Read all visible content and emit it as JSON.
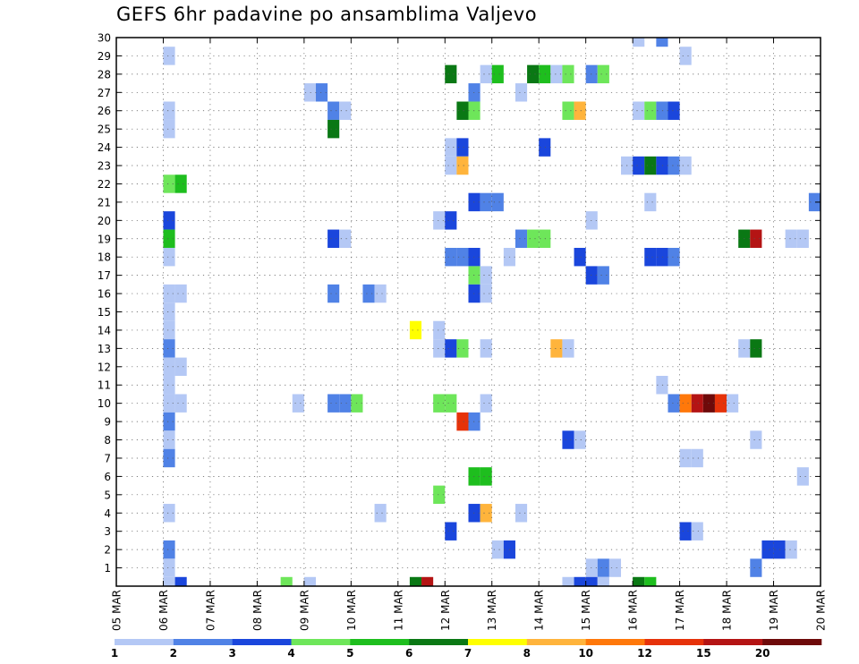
{
  "title": "GEFS 6hr padavine po ansamblima Valjevo",
  "chart_data": {
    "type": "heatmap",
    "title": "GEFS 6hr padavine po ansamblima Valjevo",
    "x_ticks": [
      "05 MAR",
      "06 MAR",
      "07 MAR",
      "08 MAR",
      "09 MAR",
      "10 MAR",
      "11 MAR",
      "12 MAR",
      "13 MAR",
      "14 MAR",
      "15 MAR",
      "16 MAR",
      "17 MAR",
      "18 MAR",
      "19 MAR",
      "20 MAR"
    ],
    "y_ticks": [
      "1",
      "2",
      "3",
      "4",
      "5",
      "6",
      "7",
      "8",
      "9",
      "10",
      "11",
      "12",
      "13",
      "14",
      "15",
      "16",
      "17",
      "18",
      "19",
      "20",
      "21",
      "22",
      "23",
      "24",
      "25",
      "26",
      "27",
      "28",
      "29",
      "30"
    ],
    "xlim": [
      0,
      60
    ],
    "ylim": [
      0,
      30
    ],
    "grid": true,
    "colorbar": {
      "labels": [
        "1",
        "2",
        "3",
        "4",
        "5",
        "6",
        "7",
        "8",
        "10",
        "12",
        "15",
        "20"
      ],
      "colors": [
        "#b4c8f5",
        "#5082e6",
        "#1a46dc",
        "#6ee65a",
        "#1ebe1e",
        "#0a7814",
        "#ffff00",
        "#ffb43c",
        "#ff780a",
        "#e6320a",
        "#b41414",
        "#6e0a0a"
      ]
    },
    "cells": [
      [
        4,
        29,
        0
      ],
      [
        4,
        26,
        0
      ],
      [
        4,
        25,
        0
      ],
      [
        4,
        22,
        3
      ],
      [
        5,
        22,
        4
      ],
      [
        4,
        20,
        2
      ],
      [
        4,
        19,
        4
      ],
      [
        4,
        18,
        0
      ],
      [
        4,
        16,
        0
      ],
      [
        5,
        16,
        0
      ],
      [
        4,
        15,
        0
      ],
      [
        4,
        14,
        0
      ],
      [
        4,
        13,
        1
      ],
      [
        4,
        12,
        0
      ],
      [
        5,
        12,
        0
      ],
      [
        4,
        11,
        0
      ],
      [
        4,
        10,
        0
      ],
      [
        5,
        10,
        0
      ],
      [
        4,
        9,
        1
      ],
      [
        4,
        8,
        0
      ],
      [
        4,
        7,
        1
      ],
      [
        4,
        4,
        0
      ],
      [
        4,
        2,
        1
      ],
      [
        4,
        1,
        0
      ],
      [
        4,
        0,
        0
      ],
      [
        5,
        0,
        2
      ],
      [
        16,
        27,
        0
      ],
      [
        17,
        27,
        1
      ],
      [
        18,
        26,
        1
      ],
      [
        19,
        26,
        0
      ],
      [
        18,
        25,
        5
      ],
      [
        18,
        19,
        2
      ],
      [
        19,
        19,
        0
      ],
      [
        18,
        16,
        1
      ],
      [
        21,
        16,
        1
      ],
      [
        22,
        16,
        0
      ],
      [
        18,
        10,
        1
      ],
      [
        19,
        10,
        1
      ],
      [
        20,
        10,
        3
      ],
      [
        15,
        10,
        0
      ],
      [
        22,
        4,
        0
      ],
      [
        14,
        0,
        3
      ],
      [
        16,
        0,
        0
      ],
      [
        25,
        14,
        6
      ],
      [
        25,
        0,
        5
      ],
      [
        26,
        0,
        10
      ],
      [
        28,
        28,
        5
      ],
      [
        31,
        28,
        0
      ],
      [
        32,
        28,
        4
      ],
      [
        30,
        27,
        1
      ],
      [
        29,
        26,
        5
      ],
      [
        30,
        26,
        3
      ],
      [
        28,
        24,
        0
      ],
      [
        29,
        24,
        2
      ],
      [
        28,
        23,
        0
      ],
      [
        29,
        23,
        7
      ],
      [
        30,
        21,
        2
      ],
      [
        31,
        21,
        1
      ],
      [
        32,
        21,
        1
      ],
      [
        27,
        20,
        0
      ],
      [
        28,
        20,
        2
      ],
      [
        28,
        18,
        1
      ],
      [
        29,
        18,
        1
      ],
      [
        30,
        18,
        2
      ],
      [
        30,
        17,
        3
      ],
      [
        31,
        17,
        0
      ],
      [
        30,
        16,
        2
      ],
      [
        31,
        16,
        0
      ],
      [
        27,
        14,
        0
      ],
      [
        27,
        13,
        0
      ],
      [
        28,
        13,
        2
      ],
      [
        29,
        13,
        3
      ],
      [
        31,
        13,
        0
      ],
      [
        27,
        10,
        3
      ],
      [
        28,
        10,
        3
      ],
      [
        31,
        10,
        0
      ],
      [
        29,
        9,
        9
      ],
      [
        30,
        9,
        1
      ],
      [
        30,
        6,
        4
      ],
      [
        31,
        6,
        4
      ],
      [
        27,
        5,
        3
      ],
      [
        30,
        4,
        2
      ],
      [
        31,
        4,
        7
      ],
      [
        28,
        3,
        2
      ],
      [
        32,
        2,
        0
      ],
      [
        33,
        2,
        2
      ],
      [
        35,
        28,
        5
      ],
      [
        36,
        28,
        4
      ],
      [
        37,
        28,
        0
      ],
      [
        38,
        28,
        3
      ],
      [
        34,
        27,
        0
      ],
      [
        38,
        26,
        3
      ],
      [
        39,
        26,
        7
      ],
      [
        36,
        24,
        2
      ],
      [
        34,
        19,
        1
      ],
      [
        35,
        19,
        3
      ],
      [
        36,
        19,
        3
      ],
      [
        33,
        18,
        0
      ],
      [
        39,
        18,
        2
      ],
      [
        37,
        13,
        7
      ],
      [
        38,
        13,
        0
      ],
      [
        38,
        8,
        2
      ],
      [
        39,
        8,
        0
      ],
      [
        34,
        4,
        0
      ],
      [
        38,
        0,
        0
      ],
      [
        39,
        0,
        2
      ],
      [
        40,
        28,
        1
      ],
      [
        41,
        28,
        3
      ],
      [
        40,
        20,
        0
      ],
      [
        40,
        17,
        2
      ],
      [
        41,
        17,
        1
      ],
      [
        40,
        1,
        0
      ],
      [
        41,
        1,
        1
      ],
      [
        42,
        1,
        0
      ],
      [
        40,
        0,
        2
      ],
      [
        41,
        0,
        0
      ],
      [
        44,
        30,
        0
      ],
      [
        46,
        30,
        1
      ],
      [
        44,
        26,
        0
      ],
      [
        45,
        26,
        3
      ],
      [
        46,
        26,
        1
      ],
      [
        47,
        26,
        2
      ],
      [
        43,
        23,
        0
      ],
      [
        44,
        23,
        2
      ],
      [
        45,
        23,
        5
      ],
      [
        46,
        23,
        2
      ],
      [
        47,
        23,
        1
      ],
      [
        48,
        23,
        0
      ],
      [
        45,
        21,
        0
      ],
      [
        45,
        18,
        2
      ],
      [
        46,
        18,
        2
      ],
      [
        47,
        18,
        1
      ],
      [
        46,
        11,
        0
      ],
      [
        47,
        10,
        1
      ],
      [
        48,
        10,
        8
      ],
      [
        49,
        10,
        10
      ],
      [
        50,
        10,
        11
      ],
      [
        51,
        10,
        9
      ],
      [
        52,
        10,
        0
      ],
      [
        48,
        7,
        0
      ],
      [
        49,
        7,
        0
      ],
      [
        48,
        3,
        2
      ],
      [
        49,
        3,
        0
      ],
      [
        44,
        0,
        5
      ],
      [
        45,
        0,
        4
      ],
      [
        48,
        29,
        0
      ],
      [
        53,
        19,
        5
      ],
      [
        54,
        19,
        10
      ],
      [
        53,
        13,
        0
      ],
      [
        54,
        13,
        5
      ],
      [
        54,
        8,
        0
      ],
      [
        54,
        1,
        1
      ],
      [
        59,
        21,
        1
      ],
      [
        57,
        19,
        0
      ],
      [
        58,
        19,
        0
      ],
      [
        58,
        6,
        0
      ],
      [
        55,
        2,
        2
      ],
      [
        56,
        2,
        2
      ],
      [
        57,
        2,
        0
      ]
    ]
  }
}
